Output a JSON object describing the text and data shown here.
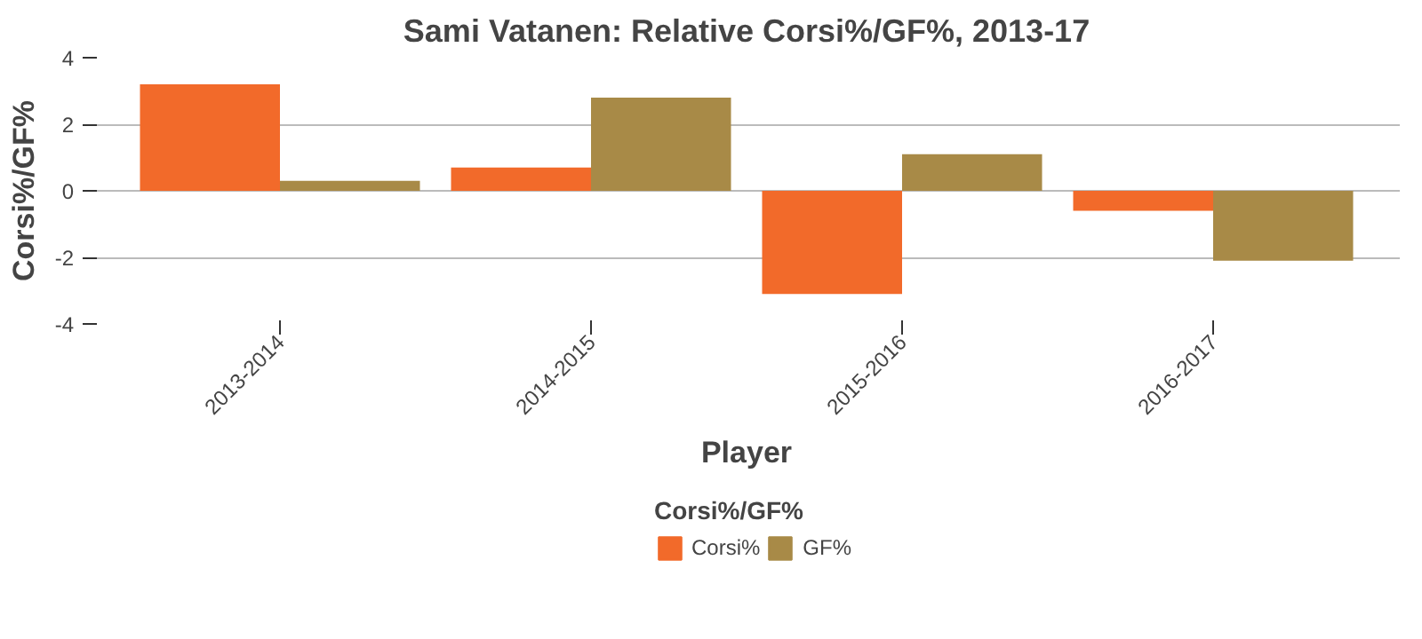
{
  "chart_data": {
    "type": "bar",
    "title": "Sami Vatanen: Relative Corsi%/GF%, 2013-17",
    "xlabel": "Player",
    "ylabel": "Corsi%/GF%",
    "legend_title": "Corsi%/GF%",
    "categories": [
      "2013-2014",
      "2014-2015",
      "2015-2016",
      "2016-2017"
    ],
    "series": [
      {
        "name": "Corsi%",
        "color": "#f26a2a",
        "values": [
          3.2,
          0.7,
          -3.1,
          -0.6
        ]
      },
      {
        "name": "GF%",
        "color": "#a88a47",
        "values": [
          0.3,
          2.8,
          1.1,
          -2.1
        ]
      }
    ],
    "ylim": [
      -4,
      4
    ],
    "yticks": [
      -4,
      -2,
      0,
      2,
      4
    ],
    "grid": "y",
    "legend": "bottom"
  }
}
